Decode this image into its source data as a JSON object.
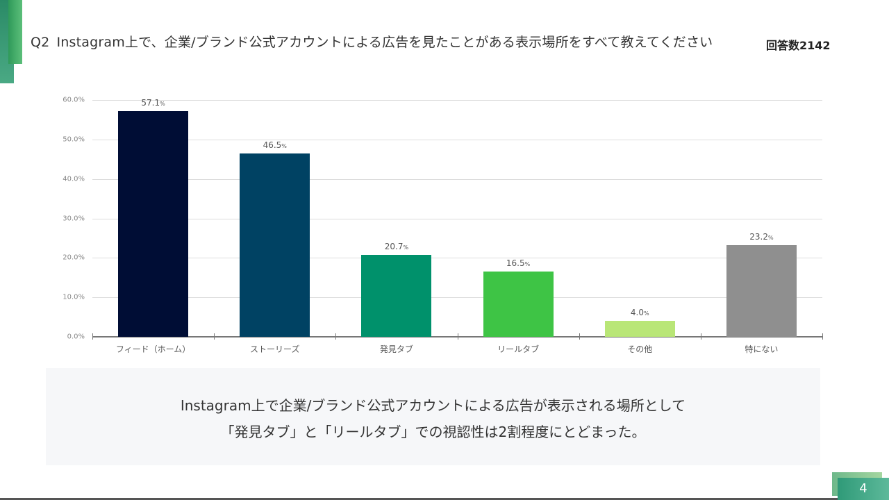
{
  "header": {
    "question_no": "Q2",
    "question": "Instagram上で、企業/ブランド公式アカウントによる広告を見たことがある表示場所をすべて教えてください",
    "respondents": "回答数2142"
  },
  "chart_data": {
    "type": "bar",
    "title": "Instagram上で、企業/ブランド公式アカウントによる広告を見たことがある表示場所をすべて教えてください",
    "xlabel": "",
    "ylabel": "",
    "ylim": [
      0,
      60
    ],
    "yticks": [
      "0.0%",
      "10.0%",
      "20.0%",
      "30.0%",
      "40.0%",
      "50.0%",
      "60.0%"
    ],
    "grid": true,
    "categories": [
      "フィード（ホーム）",
      "ストーリーズ",
      "発見タブ",
      "リールタブ",
      "その他",
      "特にない"
    ],
    "values": [
      57.1,
      46.5,
      20.7,
      16.5,
      4.0,
      23.2
    ],
    "value_labels": [
      "57.1",
      "46.5",
      "20.7",
      "16.5",
      "4.0",
      "23.2"
    ],
    "unit": "%",
    "colors": [
      "#000d35",
      "#004263",
      "#00916b",
      "#3ec445",
      "#b9e677",
      "#8f8f8f"
    ],
    "n": 2142
  },
  "summary": {
    "line1": "Instagram上で企業/ブランド公式アカウントによる広告が表示される場所として",
    "line2": "「発見タブ」と「リールタブ」での視認性は2割程度にとどまった。"
  },
  "footer": {
    "page_number": "4"
  }
}
